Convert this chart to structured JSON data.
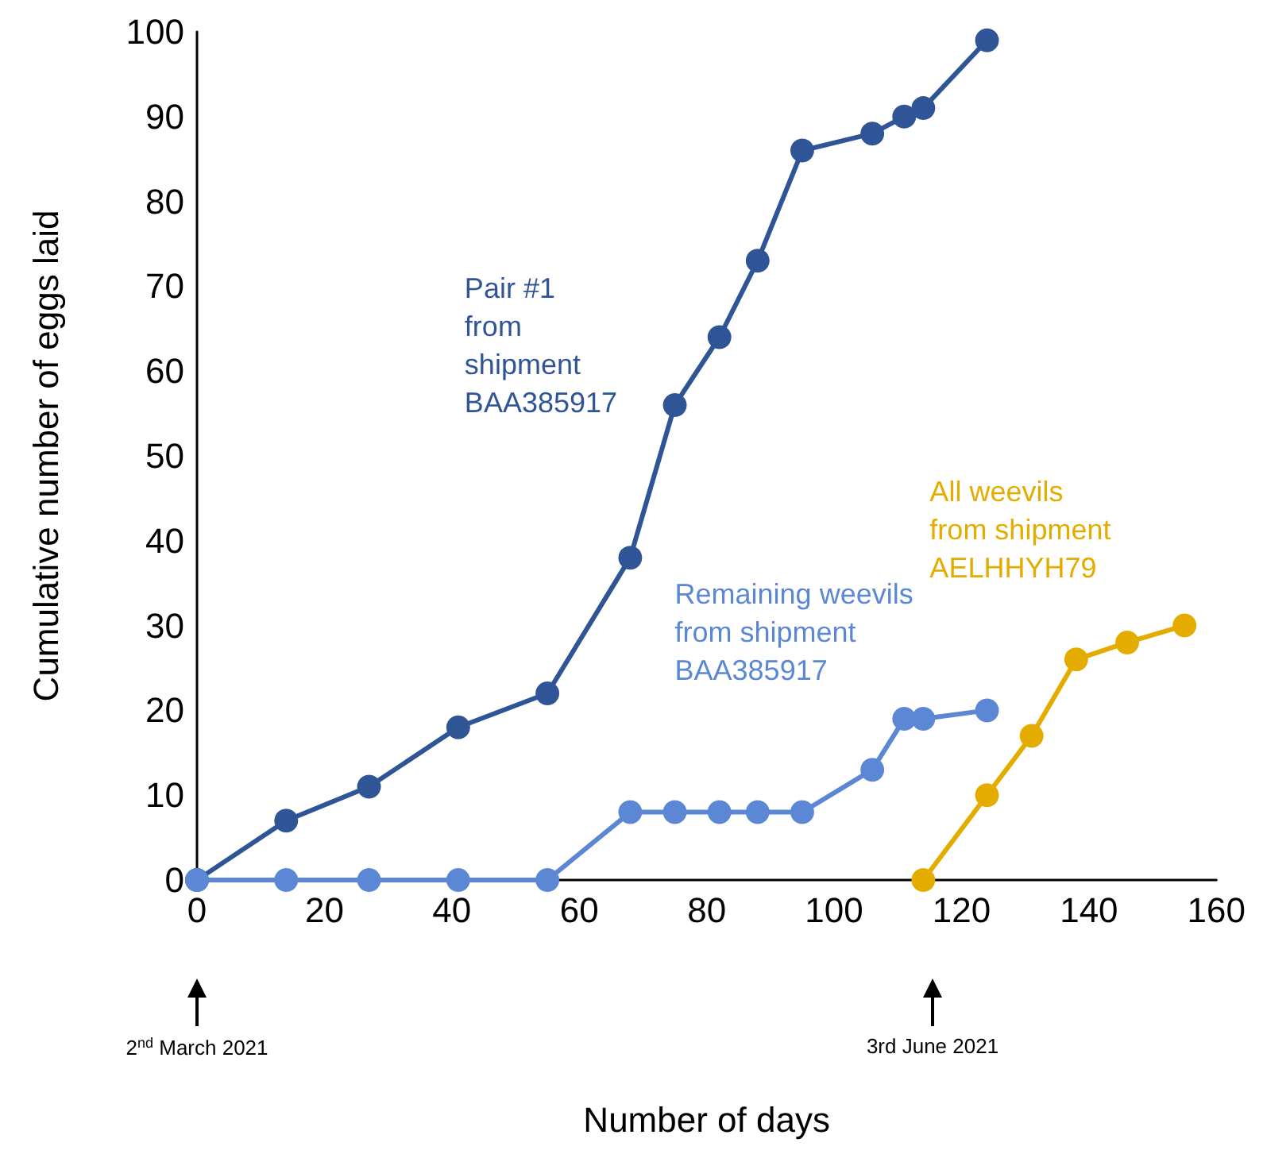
{
  "chart_data": {
    "type": "line",
    "xlabel": "Number of days",
    "ylabel": "Cumulative number of eggs laid",
    "xlim": [
      0,
      160
    ],
    "xticks": [
      0,
      20,
      40,
      60,
      80,
      100,
      120,
      140,
      160
    ],
    "ylim": [
      0,
      100
    ],
    "yticks": [
      0,
      10,
      20,
      30,
      40,
      50,
      60,
      70,
      80,
      90,
      100
    ],
    "grid": false,
    "legend": false,
    "marker": "circle",
    "line_style": "solid",
    "series": [
      {
        "name": "Pair #1 from shipment BAA385917",
        "color": "#2f5597",
        "x": [
          0,
          14,
          27,
          41,
          55,
          68,
          75,
          82,
          88,
          95,
          106,
          111,
          114,
          124
        ],
        "values": [
          0,
          7,
          11,
          18,
          22,
          38,
          56,
          64,
          73,
          86,
          88,
          90,
          91,
          99
        ]
      },
      {
        "name": "Remaining weevils from shipment BAA385917",
        "color": "#5b87d4",
        "x": [
          0,
          14,
          27,
          41,
          55,
          68,
          75,
          82,
          88,
          95,
          106,
          111,
          114,
          124
        ],
        "values": [
          0,
          0,
          0,
          0,
          0,
          8,
          8,
          8,
          8,
          8,
          13,
          19,
          19,
          20
        ]
      },
      {
        "name": "All weevils from shipment AELHHYH79",
        "color": "#e5ac00",
        "x": [
          114,
          124,
          131,
          138,
          146,
          155
        ],
        "values": [
          0,
          10,
          17,
          26,
          28,
          30
        ]
      }
    ],
    "annotations": [
      "2$^{nd}$ March 2021",
      "3rd June 2021"
    ]
  }
}
